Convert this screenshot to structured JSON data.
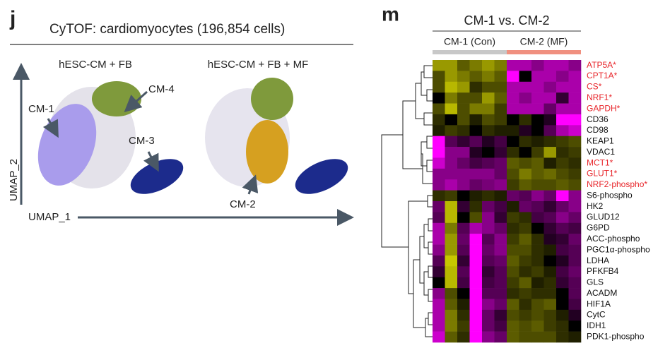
{
  "panel_j": {
    "letter": "j",
    "title": "CyTOF: cardiomyocytes (196,854 cells)",
    "conditions": [
      "hESC-CM + FB",
      "hESC-CM + FB + MF"
    ],
    "clusters": [
      "CM-1",
      "CM-4",
      "CM-3",
      "CM-2"
    ],
    "x_axis": "UMAP_1",
    "y_axis": "UMAP_2"
  },
  "panel_m": {
    "letter": "m",
    "title": "CM-1 vs. CM-2",
    "groups": [
      {
        "name": "CM-1 (Con)",
        "color": "#c8c8c8"
      },
      {
        "name": "CM-2 (MF)",
        "color": "#f0907f"
      }
    ],
    "rows": [
      {
        "label": "ATP5A*",
        "color": "#e8262b",
        "values": [
          1,
          1,
          0.6,
          0.8,
          1,
          0.8,
          -1,
          -1,
          -0.8,
          -1,
          -1,
          -0.8
        ]
      },
      {
        "label": "CPT1A*",
        "color": "#e8262b",
        "values": [
          0.5,
          1,
          0.8,
          0.6,
          0.8,
          0.6,
          -1.5,
          0,
          -1,
          -1,
          -0.8,
          -1
        ]
      },
      {
        "label": "CS*",
        "color": "#e8262b",
        "values": [
          0.5,
          1.2,
          1,
          0.3,
          0.5,
          0.5,
          -1,
          -1,
          -1,
          -0.8,
          -1,
          -1
        ]
      },
      {
        "label": "NRF1*",
        "color": "#e8262b",
        "values": [
          0,
          0.8,
          0.5,
          0.5,
          1,
          0.6,
          -1,
          -0.8,
          -1,
          -1,
          -0.3,
          -1
        ]
      },
      {
        "label": "GAPDH*",
        "color": "#e8262b",
        "values": [
          0.5,
          1.2,
          0.5,
          0.8,
          0.8,
          0.4,
          -1,
          -1,
          -1,
          -0.6,
          -1,
          -1
        ]
      },
      {
        "label": "CD36",
        "color": "#111111",
        "values": [
          0.3,
          0,
          0.5,
          0.2,
          0.5,
          0.4,
          0,
          0.3,
          0,
          -0.2,
          -1.5,
          -1.5
        ]
      },
      {
        "label": "CD98",
        "color": "#111111",
        "values": [
          0.2,
          0.4,
          0.3,
          0,
          0.3,
          0.2,
          0.2,
          -0.2,
          0,
          -0.5,
          -1,
          -1.2
        ]
      },
      {
        "label": "KEAP1",
        "color": "#111111",
        "values": [
          -1.5,
          -0.5,
          -0.3,
          -0.5,
          -0.2,
          -0.4,
          0,
          0.3,
          0.2,
          0.3,
          0.4,
          0.5
        ]
      },
      {
        "label": "VDAC1",
        "color": "#111111",
        "values": [
          -1.5,
          -0.8,
          -0.8,
          -0.2,
          0,
          -0.3,
          0.3,
          0,
          0.4,
          1,
          0.3,
          0.4
        ]
      },
      {
        "label": "MCT1*",
        "color": "#e8262b",
        "values": [
          -1.2,
          -0.8,
          -0.6,
          -0.4,
          -0.5,
          -0.6,
          0.6,
          0.5,
          0.6,
          0.2,
          0.4,
          0.3
        ]
      },
      {
        "label": "GLUT1*",
        "color": "#e8262b",
        "values": [
          -0.8,
          -0.8,
          -0.8,
          -0.8,
          -0.8,
          -0.6,
          0.5,
          0.8,
          0.6,
          0.7,
          0.5,
          0.4
        ]
      },
      {
        "label": "NRF2-phospho*",
        "color": "#e8262b",
        "values": [
          -0.8,
          -1,
          -0.8,
          -0.6,
          -0.7,
          -0.8,
          0.4,
          0.6,
          0.5,
          0.5,
          0.6,
          0.5
        ]
      },
      {
        "label": "S6-phospho",
        "color": "#111111",
        "values": [
          0.3,
          0.4,
          0,
          0.2,
          0.3,
          0.2,
          -0.6,
          -0.5,
          -0.8,
          -0.6,
          -1.5,
          -0.8
        ]
      },
      {
        "label": "HK2",
        "color": "#111111",
        "values": [
          -0.6,
          1.2,
          -0.3,
          0.3,
          -0.6,
          -0.4,
          0.2,
          -0.6,
          -0.5,
          -0.3,
          -0.6,
          -0.8
        ]
      },
      {
        "label": "GLUD12",
        "color": "#111111",
        "values": [
          -0.5,
          1.2,
          0,
          0.5,
          -0.8,
          -0.3,
          0.4,
          0.3,
          -0.4,
          -0.5,
          -0.8,
          -0.6
        ]
      },
      {
        "label": "G6PD",
        "color": "#111111",
        "values": [
          -1,
          0.8,
          -0.5,
          -1,
          -0.8,
          -0.6,
          0.3,
          0.4,
          0,
          -0.3,
          -0.5,
          -0.4
        ]
      },
      {
        "label": "ACC-phospho",
        "color": "#111111",
        "values": [
          -1,
          1,
          -0.6,
          -1.5,
          -0.5,
          -0.8,
          0.4,
          0.6,
          0.3,
          -0.2,
          -0.3,
          -0.6
        ]
      },
      {
        "label": "PGC1α-phospho",
        "color": "#111111",
        "values": [
          -0.8,
          1,
          -0.5,
          -1.5,
          -0.6,
          -0.8,
          0.5,
          0.5,
          0.3,
          0.2,
          -0.4,
          -0.5
        ]
      },
      {
        "label": "LDHA",
        "color": "#111111",
        "values": [
          -0.5,
          1.3,
          -0.3,
          -1.5,
          -0.5,
          -0.6,
          0.6,
          0.4,
          0.3,
          0,
          -0.2,
          -0.5
        ]
      },
      {
        "label": "PFKFB4",
        "color": "#111111",
        "values": [
          -0.3,
          1.2,
          -0.5,
          -1.5,
          -0.3,
          -0.5,
          0.5,
          0.3,
          0.4,
          0.2,
          -0.4,
          -0.6
        ]
      },
      {
        "label": "GLS",
        "color": "#111111",
        "values": [
          0,
          1.2,
          -0.4,
          -1.5,
          -0.4,
          -0.5,
          0.4,
          0.6,
          0.2,
          0.3,
          -0.3,
          -0.5
        ]
      },
      {
        "label": "ACADM",
        "color": "#111111",
        "values": [
          -0.8,
          0.5,
          0,
          -1.5,
          -0.5,
          -0.5,
          0.3,
          0.4,
          0.3,
          0.3,
          0,
          -0.5
        ]
      },
      {
        "label": "HIF1A",
        "color": "#111111",
        "values": [
          -1,
          0.6,
          0.2,
          -1.5,
          -0.8,
          -0.6,
          0.6,
          0.3,
          0.5,
          0.6,
          0,
          -0.4
        ]
      },
      {
        "label": "CytC",
        "color": "#111111",
        "values": [
          -1,
          0.8,
          0.3,
          -1.5,
          -0.6,
          -0.3,
          0.5,
          0.4,
          0.5,
          0.4,
          0.2,
          -0.2
        ]
      },
      {
        "label": "IDH1",
        "color": "#111111",
        "values": [
          -1,
          0.8,
          0.4,
          -1.5,
          -0.6,
          -0.4,
          0.6,
          0.5,
          0.6,
          0.4,
          0.3,
          0
        ]
      },
      {
        "label": "PDK1-phospho",
        "color": "#111111",
        "values": [
          -1.2,
          0.6,
          0.3,
          -1.5,
          -0.8,
          -0.6,
          0.6,
          0.5,
          0.5,
          0.5,
          0.3,
          0.2
        ]
      }
    ]
  }
}
